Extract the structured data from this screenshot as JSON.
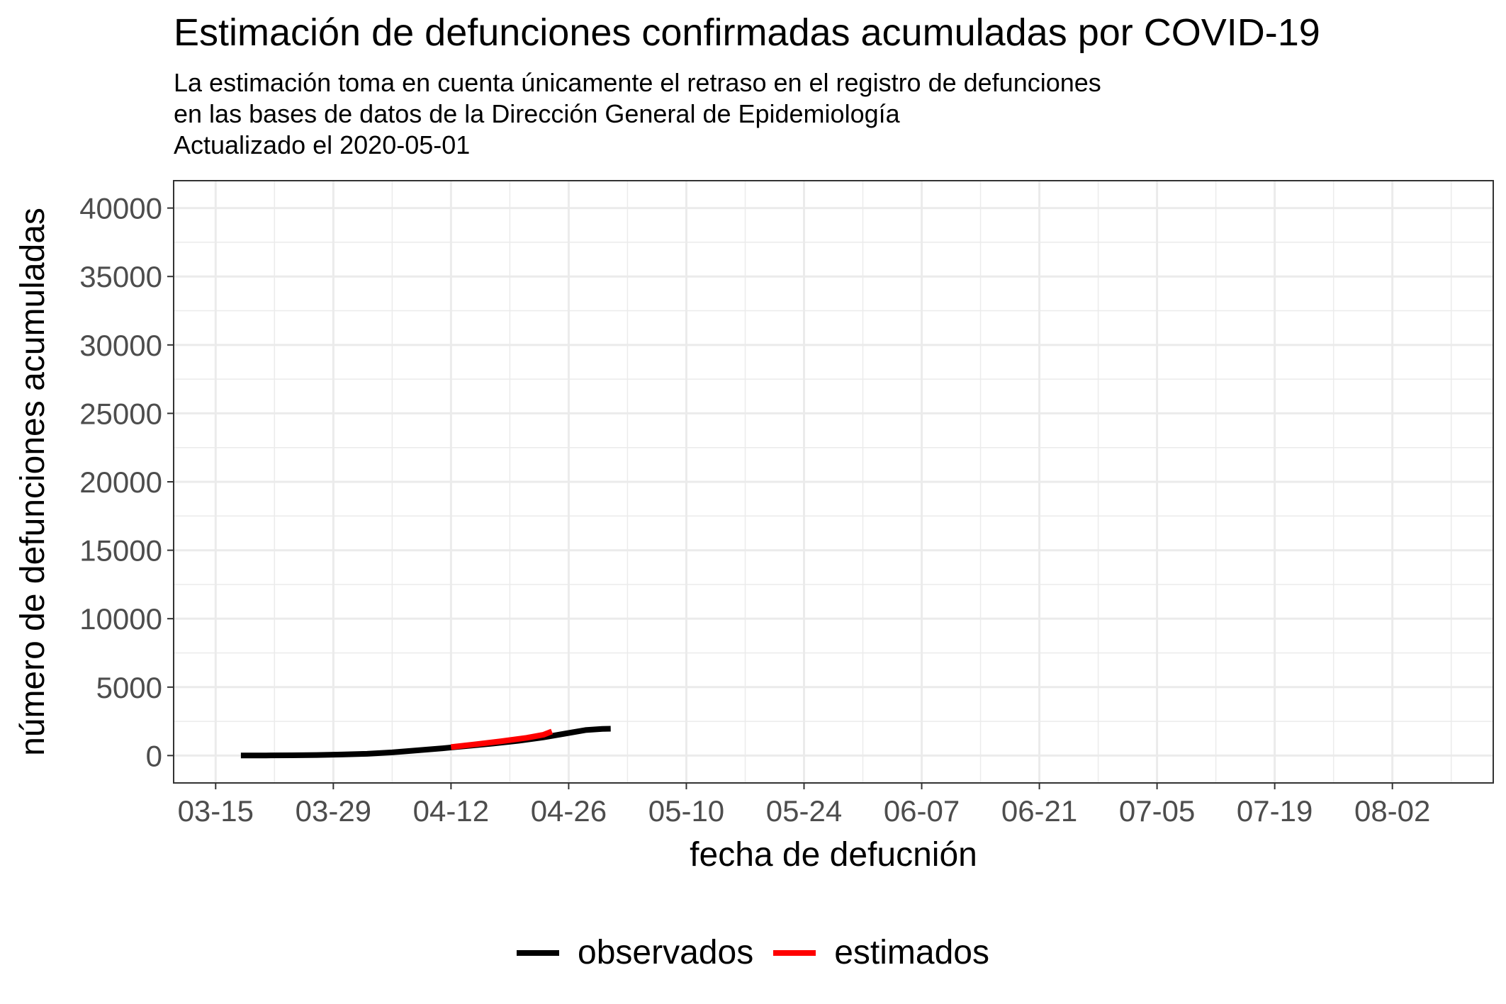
{
  "chart_data": {
    "type": "line",
    "title": "Estimación de defunciones confirmadas acumuladas por COVID-19",
    "subtitle": [
      "La estimación toma en cuenta únicamente el retraso en el registro de defunciones",
      "en las bases de datos de la Dirección General de Epidemiología",
      "Actualizado el 2020-05-01"
    ],
    "xlabel": "fecha de defucnión",
    "ylabel": "número de defunciones acumuladas",
    "x_ticks": [
      "03-15",
      "03-29",
      "04-12",
      "04-26",
      "05-10",
      "05-24",
      "06-07",
      "06-21",
      "07-05",
      "07-19",
      "08-02"
    ],
    "y_ticks": [
      "0",
      "5000",
      "10000",
      "15000",
      "20000",
      "25000",
      "30000",
      "35000",
      "40000"
    ],
    "xlim": [
      "2020-03-10",
      "2020-08-14"
    ],
    "ylim": [
      -2000,
      42000
    ],
    "grid": true,
    "legend_position": "bottom",
    "series": [
      {
        "name": "observados",
        "color": "#000000",
        "points": [
          [
            "2020-03-18",
            5
          ],
          [
            "2020-03-21",
            10
          ],
          [
            "2020-03-24",
            20
          ],
          [
            "2020-03-27",
            40
          ],
          [
            "2020-03-30",
            75
          ],
          [
            "2020-04-02",
            130
          ],
          [
            "2020-04-05",
            230
          ],
          [
            "2020-04-08",
            380
          ],
          [
            "2020-04-11",
            530
          ],
          [
            "2020-04-14",
            700
          ],
          [
            "2020-04-17",
            880
          ],
          [
            "2020-04-20",
            1080
          ],
          [
            "2020-04-23",
            1330
          ],
          [
            "2020-04-26",
            1650
          ],
          [
            "2020-04-28",
            1860
          ],
          [
            "2020-04-30",
            1950
          ],
          [
            "2020-05-01",
            1960
          ]
        ]
      },
      {
        "name": "estimados",
        "color": "#ff0000",
        "points": [
          [
            "2020-04-12",
            620
          ],
          [
            "2020-04-15",
            830
          ],
          [
            "2020-04-18",
            1050
          ],
          [
            "2020-04-21",
            1300
          ],
          [
            "2020-04-23",
            1520
          ],
          [
            "2020-04-24",
            1760
          ]
        ]
      }
    ]
  }
}
